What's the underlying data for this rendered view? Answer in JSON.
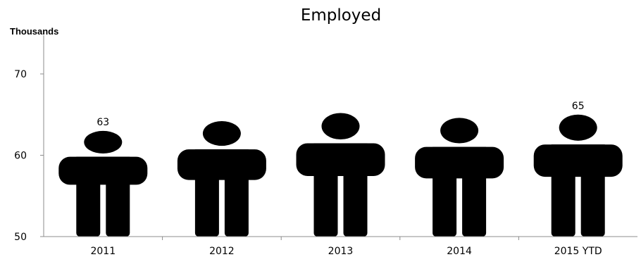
{
  "chart_data": {
    "type": "bar",
    "style": "pictograph-person",
    "title": "Employed",
    "unit_label": "Thousands",
    "xlabel": "",
    "ylabel": "",
    "ylim": [
      50,
      70
    ],
    "yticks": [
      50,
      60,
      70
    ],
    "categories": [
      "2011",
      "2012",
      "2013",
      "2014",
      "2015 YTD"
    ],
    "values": [
      63,
      64.2,
      65.2,
      64.6,
      65
    ],
    "data_labels": [
      "63",
      "",
      "",
      "",
      "65"
    ],
    "grid": false,
    "legend": "none",
    "color": "#000000"
  }
}
